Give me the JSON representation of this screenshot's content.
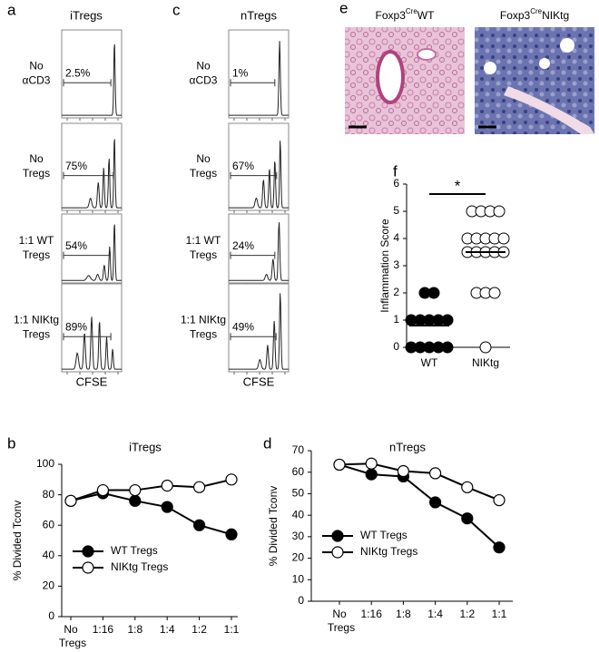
{
  "panels": {
    "a": {
      "letter": "a",
      "title": "iTregs",
      "xlabel": "CFSE",
      "rows": [
        {
          "label": [
            "No",
            "αCD3"
          ],
          "percent": "2.5%"
        },
        {
          "label": [
            "No",
            "Tregs"
          ],
          "percent": "75%"
        },
        {
          "label": [
            "1:1 WT",
            "Tregs"
          ],
          "percent": "54%"
        },
        {
          "label": [
            "1:1 NIKtg",
            "Tregs"
          ],
          "percent": "89%"
        }
      ]
    },
    "c": {
      "letter": "c",
      "title": "nTregs",
      "xlabel": "CFSE",
      "rows": [
        {
          "label": [
            "No",
            "αCD3"
          ],
          "percent": "1%"
        },
        {
          "label": [
            "No",
            "Tregs"
          ],
          "percent": "67%"
        },
        {
          "label": [
            "1:1 WT",
            "Tregs"
          ],
          "percent": "24%"
        },
        {
          "label": [
            "1:1 NIKtg",
            "Tregs"
          ],
          "percent": "49%"
        }
      ]
    },
    "e": {
      "letter": "e",
      "images": [
        {
          "base": "Foxp3",
          "sup": "Cre",
          "rest": "WT"
        },
        {
          "base": "Foxp3",
          "sup": "Cre",
          "rest": "NIKtg"
        }
      ]
    }
  },
  "chart_data": [
    {
      "letter": "b",
      "type": "line",
      "title": "iTregs",
      "ylabel": "% Divided Tconv",
      "xlabel": "Tregs",
      "categories": [
        "No",
        "1:16",
        "1:8",
        "1:4",
        "1:2",
        "1:1"
      ],
      "ylim": [
        0,
        100
      ],
      "yticks": [
        0,
        20,
        40,
        60,
        80,
        100
      ],
      "legend": "lower left",
      "series": [
        {
          "name": "WT Tregs",
          "color": "#000000",
          "values": [
            76,
            81,
            76,
            72,
            60,
            54
          ]
        },
        {
          "name": "NIKtg Tregs",
          "color": "#ffffff",
          "values": [
            76,
            83,
            83,
            86,
            85,
            90
          ]
        }
      ]
    },
    {
      "letter": "d",
      "type": "line",
      "title": "nTregs",
      "ylabel": "% Divided Tconv",
      "xlabel": "Tregs",
      "categories": [
        "No",
        "1:16",
        "1:8",
        "1:4",
        "1:2",
        "1:1"
      ],
      "ylim": [
        0,
        70
      ],
      "yticks": [
        0,
        10,
        20,
        30,
        40,
        50,
        60,
        70
      ],
      "legend": "lower left",
      "series": [
        {
          "name": "WT Tregs",
          "color": "#000000",
          "values": [
            63.5,
            59,
            58,
            46,
            38.5,
            25
          ]
        },
        {
          "name": "NIKtg Tregs",
          "color": "#ffffff",
          "values": [
            63.5,
            64,
            60.5,
            59.5,
            53,
            47
          ]
        }
      ]
    },
    {
      "letter": "f",
      "type": "dot",
      "ylabel": "Inflammation Score",
      "categories": [
        "WT",
        "NIKtg"
      ],
      "ylim": [
        0,
        6
      ],
      "yticks": [
        0,
        1,
        2,
        3,
        4,
        5,
        6
      ],
      "annotation": "*",
      "groups": [
        {
          "color": "#000000",
          "values": [
            2,
            2,
            1,
            1,
            1,
            1,
            1,
            0,
            0,
            0,
            0,
            0
          ]
        },
        {
          "color": "#ffffff",
          "values": [
            5,
            5,
            5,
            5,
            4,
            4,
            4,
            4,
            4,
            3.5,
            3.5,
            3.5,
            3.5,
            3.5,
            2,
            2,
            2,
            0
          ]
        }
      ],
      "means": [
        0.8,
        3.5
      ]
    }
  ]
}
